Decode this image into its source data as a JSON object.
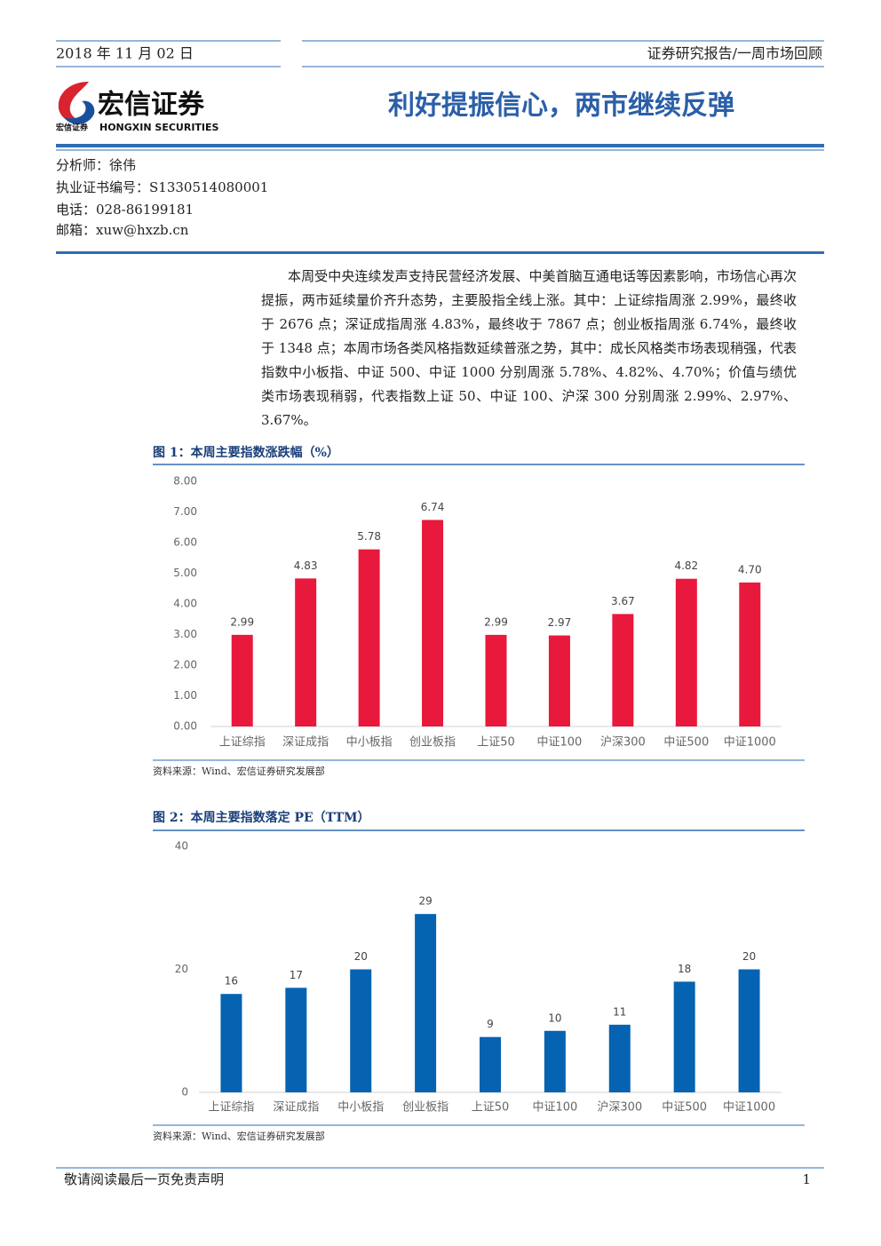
{
  "header": {
    "date": "2018 年 11 月 02 日",
    "report_type": "证券研究报告/一周市场回顾"
  },
  "logo": {
    "name": "宏信证券",
    "english": "HONGXIN SECURITIES",
    "small": "宏信证券"
  },
  "title": "利好提振信心，两市继续反弹",
  "analyst": [
    "分析师：徐伟",
    "执业证书编号：S1330514080001",
    "电话：028-86199181",
    "邮箱：xuw@hxzb.cn"
  ],
  "body": "本周受中央连续发声支持民营经济发展、中美首脑互通电话等因素影响，市场信心再次提振，两市延续量价齐升态势，主要股指全线上涨。其中：上证综指周涨 2.99%，最终收于 2676 点；深证成指周涨 4.83%，最终收于 7867 点；创业板指周涨 6.74%，最终收于 1348 点；本周市场各类风格指数延续普涨之势，其中：成长风格类市场表现稍强，代表指数中小板指、中证 500、中证 1000 分别周涨 5.78%、4.82%、4.70%；价值与绩优类市场表现稍弱，代表指数上证 50、中证 100、沪深 300 分别周涨 2.99%、2.97%、3.67%。",
  "chart_data": [
    {
      "type": "bar",
      "title": "图 1：本周主要指数涨跌幅（%）",
      "source": "资料来源：Wind、宏信证券研究发展部",
      "categories": [
        "上证综指",
        "深证成指",
        "中小板指",
        "创业板指",
        "上证50",
        "中证100",
        "沪深300",
        "中证500",
        "中证1000"
      ],
      "values": [
        2.99,
        4.83,
        5.78,
        6.74,
        2.99,
        2.97,
        3.67,
        4.82,
        4.7
      ],
      "value_labels": [
        "2.99",
        "4.83",
        "5.78",
        "6.74",
        "2.99",
        "2.97",
        "3.67",
        "4.82",
        "4.70"
      ],
      "color": "#e8193c",
      "ylim": [
        0,
        8
      ],
      "yticks": [
        {
          "value": 0,
          "label": "0.00"
        },
        {
          "value": 1,
          "label": "1.00"
        },
        {
          "value": 2,
          "label": "2.00"
        },
        {
          "value": 3,
          "label": "3.00"
        },
        {
          "value": 4,
          "label": "4.00"
        },
        {
          "value": 5,
          "label": "5.00"
        },
        {
          "value": 6,
          "label": "6.00"
        },
        {
          "value": 7,
          "label": "7.00"
        },
        {
          "value": 8,
          "label": "8.00"
        }
      ],
      "grid": false
    },
    {
      "type": "bar",
      "title": "图 2：本周主要指数落定 PE（TTM）",
      "source": "资料来源：Wind、宏信证券研究发展部",
      "categories": [
        "上证综指",
        "深证成指",
        "中小板指",
        "创业板指",
        "上证50",
        "中证100",
        "沪深300",
        "中证500",
        "中证1000"
      ],
      "values": [
        16,
        17,
        20,
        29,
        9,
        10,
        11,
        18,
        20
      ],
      "color": "#0563b1",
      "ylim": [
        0,
        40
      ],
      "yticks": [
        0,
        20,
        40
      ],
      "grid": false
    }
  ],
  "footer": {
    "disclaimer": "敬请阅读最后一页免责声明",
    "page": "1"
  }
}
